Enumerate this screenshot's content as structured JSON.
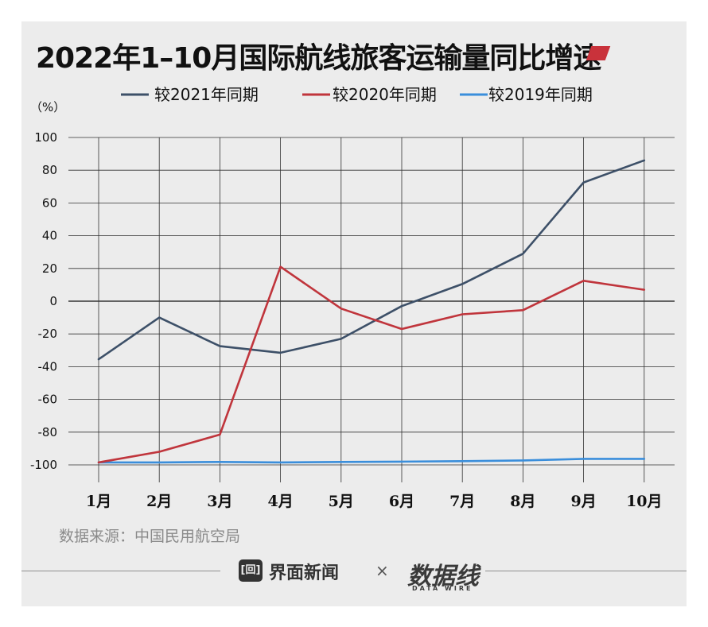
{
  "title": "2022年1–10月国际航线旅客运输量同比增速",
  "unit_label": "（%）",
  "source": "数据来源：中国民用航空局",
  "footer": {
    "brand1_icon": "[回]",
    "brand1": "界面新闻",
    "times": "×",
    "brand2": "数据线",
    "brand2_sub": "DATA WIRE"
  },
  "colors": {
    "card_bg": "#ececec",
    "title_mark": "#c9323b",
    "series_2021": "#3d5068",
    "series_2020": "#c0353c",
    "series_2019": "#3a8edb",
    "grid": "#111111"
  },
  "chart_data": {
    "type": "line",
    "title": "2022年1–10月国际航线旅客运输量同比增速",
    "ylabel": "（%）",
    "xlabel": "",
    "categories": [
      "1月",
      "2月",
      "3月",
      "4月",
      "5月",
      "6月",
      "7月",
      "8月",
      "9月",
      "10月"
    ],
    "ylim": [
      -100,
      100
    ],
    "yticks": [
      100,
      80,
      60,
      40,
      20,
      0,
      -20,
      -40,
      -60,
      -80,
      -100
    ],
    "grid": true,
    "legend_position": "top",
    "series": [
      {
        "name": "较2021年同期",
        "color": "#3d5068",
        "values": [
          -35.5,
          -10,
          -27.5,
          -31.5,
          -23,
          -3,
          10.5,
          29,
          72.5,
          86
        ]
      },
      {
        "name": "较2020年同期",
        "color": "#c0353c",
        "values": [
          -98.5,
          -92,
          -81.5,
          21,
          -4.5,
          -17,
          -8,
          -5.5,
          12.5,
          7
        ]
      },
      {
        "name": "较2019年同期",
        "color": "#3a8edb",
        "values": [
          -98.5,
          -98.5,
          -98.2,
          -98.5,
          -98.2,
          -98,
          -97.7,
          -97.3,
          -96.3,
          -96.3
        ]
      }
    ]
  }
}
